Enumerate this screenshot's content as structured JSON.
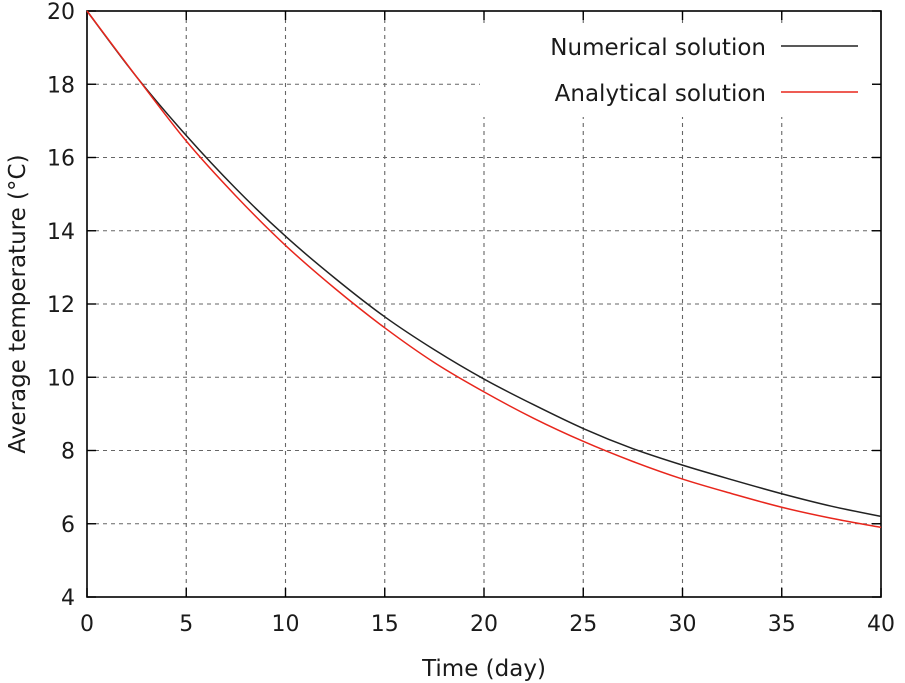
{
  "chart_data": {
    "type": "line",
    "title": "",
    "xlabel": "Time (day)",
    "ylabel": "Average temperature (°C)",
    "xlim": [
      0,
      40
    ],
    "ylim": [
      4,
      20
    ],
    "xticks": [
      0,
      5,
      10,
      15,
      20,
      25,
      30,
      35,
      40
    ],
    "yticks": [
      4,
      6,
      8,
      10,
      12,
      14,
      16,
      18,
      20
    ],
    "xtick_labels": [
      "0",
      "5",
      "10",
      "15",
      "20",
      "25",
      "30",
      "35",
      "40"
    ],
    "ytick_labels": [
      "4",
      "6",
      "8",
      "10",
      "12",
      "14",
      "16",
      "18",
      "20"
    ],
    "grid": true,
    "legend_position": "top-right",
    "series": [
      {
        "name": "Numerical solution",
        "color": "#222222",
        "x": [
          0,
          2.5,
          5,
          7.5,
          10,
          12.5,
          15,
          17.5,
          20,
          22.5,
          25,
          27.5,
          30,
          32.5,
          35,
          37.5,
          40
        ],
        "y": [
          20,
          18.2,
          16.6,
          15.15,
          13.85,
          12.7,
          11.65,
          10.75,
          9.95,
          9.25,
          8.6,
          8.05,
          7.6,
          7.2,
          6.82,
          6.48,
          6.2
        ]
      },
      {
        "name": "Analytical solution",
        "color": "#e8261c",
        "x": [
          0,
          2.5,
          5,
          7.5,
          10,
          12.5,
          15,
          17.5,
          20,
          22.5,
          25,
          27.5,
          30,
          32.5,
          35,
          37.5,
          40
        ],
        "y": [
          20,
          18.2,
          16.45,
          14.95,
          13.6,
          12.42,
          11.35,
          10.4,
          9.6,
          8.88,
          8.25,
          7.7,
          7.22,
          6.82,
          6.45,
          6.15,
          5.9
        ]
      }
    ]
  }
}
